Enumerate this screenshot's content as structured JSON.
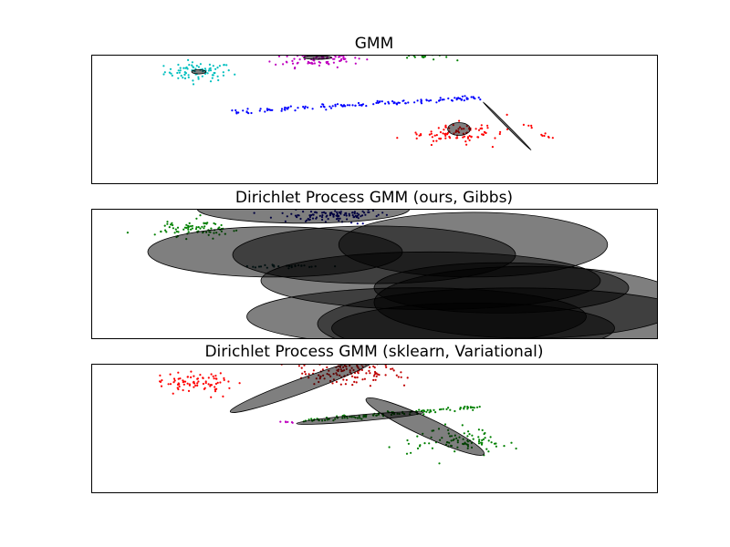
{
  "chart_data": [
    {
      "type": "scatter",
      "title": "GMM",
      "xlim": [
        -10,
        10
      ],
      "ylim": [
        -3,
        6
      ],
      "grid": false,
      "legend": "none",
      "series": [
        {
          "color": "#00bfbf",
          "center": [
            -6.2,
            4.8
          ],
          "spread": [
            1.0,
            0.55
          ],
          "count": 80
        },
        {
          "color": "#bf00bf",
          "center": [
            -2.0,
            5.8
          ],
          "spread": [
            1.3,
            0.55
          ],
          "count": 110
        },
        {
          "color": "#008000",
          "center": [
            1.8,
            5.9
          ],
          "spread": [
            0.7,
            0.25
          ],
          "count": 20
        },
        {
          "color": "#0000ff",
          "line_from": [
            -5.0,
            2.0
          ],
          "line_to": [
            3.8,
            3.0
          ],
          "jitter": 0.08,
          "count": 130
        },
        {
          "color": "#ff0000",
          "center": [
            2.8,
            0.5
          ],
          "spread": [
            1.3,
            0.6
          ],
          "count": 90
        },
        {
          "color": "#ff0000",
          "line_from": [
            4.7,
            1.8
          ],
          "line_to": [
            6.5,
            -0.1
          ],
          "jitter": 0.06,
          "count": 12
        }
      ],
      "ellipses": [
        {
          "center": [
            -2.0,
            5.8
          ],
          "width": 1.0,
          "height": 0.25,
          "angle": 0
        },
        {
          "center": [
            -6.2,
            4.8
          ],
          "width": 0.5,
          "height": 0.3,
          "angle": 0
        },
        {
          "center": [
            4.7,
            1.0
          ],
          "width": 2.4,
          "height": 0.12,
          "angle": -45
        },
        {
          "center": [
            3.0,
            0.8
          ],
          "width": 0.8,
          "height": 0.9,
          "angle": 0
        }
      ]
    },
    {
      "type": "scatter",
      "title": "Dirichlet Process GMM (ours, Gibbs)",
      "xlim": [
        -10,
        10
      ],
      "ylim": [
        -3,
        6
      ],
      "grid": false,
      "legend": "none",
      "series": [
        {
          "color": "#008000",
          "center": [
            -6.3,
            4.6
          ],
          "spread": [
            1.0,
            0.5
          ],
          "count": 80
        },
        {
          "color": "#00007f",
          "center": [
            -1.5,
            5.6
          ],
          "spread": [
            1.6,
            0.5
          ],
          "count": 120
        },
        {
          "color": "#004040",
          "center": [
            -3.0,
            2.0
          ],
          "spread": [
            1.5,
            0.08
          ],
          "count": 30
        }
      ],
      "ellipses": [
        {
          "center": [
            -2.5,
            6.0
          ],
          "width": 7.5,
          "height": 2.0,
          "angle": 0
        },
        {
          "center": [
            -3.5,
            3.0
          ],
          "width": 9.0,
          "height": 3.5,
          "angle": 0
        },
        {
          "center": [
            0.0,
            2.8
          ],
          "width": 10.0,
          "height": 4.0,
          "angle": 0
        },
        {
          "center": [
            3.5,
            3.5
          ],
          "width": 9.5,
          "height": 4.5,
          "angle": 0
        },
        {
          "center": [
            2.0,
            1.0
          ],
          "width": 12.0,
          "height": 4.0,
          "angle": 0
        },
        {
          "center": [
            4.5,
            0.5
          ],
          "width": 9.0,
          "height": 3.5,
          "angle": 0
        },
        {
          "center": [
            5.5,
            -0.5
          ],
          "width": 11.0,
          "height": 5.0,
          "angle": 0
        },
        {
          "center": [
            1.5,
            -1.5
          ],
          "width": 12.0,
          "height": 4.0,
          "angle": 0
        },
        {
          "center": [
            5.0,
            -2.0
          ],
          "width": 14.0,
          "height": 5.0,
          "angle": 0
        },
        {
          "center": [
            3.5,
            -2.3
          ],
          "width": 10.0,
          "height": 3.5,
          "angle": 0
        }
      ]
    },
    {
      "type": "scatter",
      "title": "Dirichlet Process GMM (sklearn, Variational)",
      "xlim": [
        -10,
        10
      ],
      "ylim": [
        -3,
        6
      ],
      "grid": false,
      "legend": "none",
      "series": [
        {
          "color": "#ff0000",
          "center": [
            -6.3,
            4.6
          ],
          "spread": [
            1.1,
            0.6
          ],
          "count": 80
        },
        {
          "color": "#bf0000",
          "center": [
            -1.0,
            5.4
          ],
          "spread": [
            1.7,
            0.7
          ],
          "count": 130
        },
        {
          "color": "#008000",
          "line_from": [
            -2.5,
            2.0
          ],
          "line_to": [
            3.8,
            3.0
          ],
          "jitter": 0.08,
          "count": 120
        },
        {
          "color": "#bf00bf",
          "center": [
            -3.0,
            1.95
          ],
          "spread": [
            0.3,
            0.05
          ],
          "count": 6
        },
        {
          "color": "#008000",
          "center": [
            3.0,
            0.6
          ],
          "spread": [
            1.4,
            0.7
          ],
          "count": 90
        }
      ],
      "ellipses": [
        {
          "center": [
            -2.5,
            4.5
          ],
          "width": 5.5,
          "height": 1.0,
          "angle": 20
        },
        {
          "center": [
            -0.5,
            2.2
          ],
          "width": 4.5,
          "height": 0.45,
          "angle": 5
        },
        {
          "center": [
            1.8,
            1.6
          ],
          "width": 4.6,
          "height": 1.3,
          "angle": -25
        }
      ]
    }
  ]
}
